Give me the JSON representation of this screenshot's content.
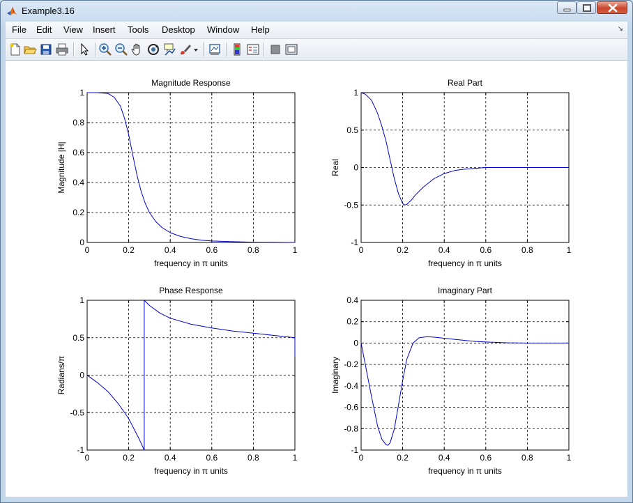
{
  "window": {
    "title": "Example3.16"
  },
  "menu": [
    "File",
    "Edit",
    "View",
    "Insert",
    "Tools",
    "Desktop",
    "Window",
    "Help"
  ],
  "toolbar_icons": [
    "new-figure-icon",
    "open-file-icon",
    "save-icon",
    "print-icon",
    "edit-plot-arrow-icon",
    "zoom-in-icon",
    "zoom-out-icon",
    "pan-hand-icon",
    "rotate-3d-icon",
    "data-cursor-icon",
    "brush-icon",
    "brush-dropdown-icon",
    "link-plot-icon",
    "insert-colorbar-icon",
    "insert-legend-icon",
    "hide-plot-tools-icon",
    "show-plot-tools-icon"
  ],
  "colors": {
    "line": "#0000cc",
    "grid": "#000000",
    "axes": "#000000"
  },
  "chart_data": [
    {
      "type": "line",
      "title": "Magnitude Response",
      "xlabel": "frequency in π units",
      "ylabel": "Magnitude  |H|",
      "xlim": [
        0,
        1
      ],
      "ylim": [
        0,
        1
      ],
      "xticks": [
        "0",
        "0.2",
        "0.4",
        "0.6",
        "0.8",
        "1"
      ],
      "yticks": [
        "0",
        "0.2",
        "0.4",
        "0.6",
        "0.8",
        "1"
      ],
      "grid": true,
      "series": [
        {
          "x": [
            0,
            0.05,
            0.1,
            0.13,
            0.16,
            0.18,
            0.2,
            0.22,
            0.24,
            0.26,
            0.28,
            0.3,
            0.33,
            0.36,
            0.4,
            0.45,
            0.5,
            0.55,
            0.6,
            0.7,
            0.8,
            0.9,
            1.0
          ],
          "y": [
            1,
            1,
            0.995,
            0.97,
            0.91,
            0.83,
            0.72,
            0.58,
            0.45,
            0.34,
            0.26,
            0.2,
            0.14,
            0.1,
            0.065,
            0.04,
            0.025,
            0.015,
            0.01,
            0.005,
            0.002,
            0.001,
            0
          ]
        }
      ]
    },
    {
      "type": "line",
      "title": "Real Part",
      "xlabel": "frequency in π units",
      "ylabel": "Real",
      "xlim": [
        0,
        1
      ],
      "ylim": [
        -1,
        1
      ],
      "xticks": [
        "0",
        "0.2",
        "0.4",
        "0.6",
        "0.8",
        "1"
      ],
      "yticks": [
        "-1",
        "-0.5",
        "0",
        "0.5",
        "1"
      ],
      "grid": true,
      "series": [
        {
          "x": [
            0,
            0.02,
            0.05,
            0.08,
            0.1,
            0.12,
            0.14,
            0.16,
            0.18,
            0.2,
            0.21,
            0.22,
            0.24,
            0.26,
            0.3,
            0.35,
            0.4,
            0.45,
            0.5,
            0.55,
            0.6,
            0.7,
            0.8,
            0.9,
            1.0
          ],
          "y": [
            1,
            0.98,
            0.9,
            0.72,
            0.55,
            0.35,
            0.1,
            -0.15,
            -0.35,
            -0.48,
            -0.5,
            -0.49,
            -0.44,
            -0.37,
            -0.26,
            -0.15,
            -0.08,
            -0.04,
            -0.02,
            -0.01,
            0,
            0,
            0,
            0,
            0
          ]
        }
      ]
    },
    {
      "type": "line",
      "title": "Phase Response",
      "xlabel": "frequency in π units",
      "ylabel": "Radians/π",
      "xlim": [
        0,
        1
      ],
      "ylim": [
        -1,
        1
      ],
      "xticks": [
        "0",
        "0.2",
        "0.4",
        "0.6",
        "0.8",
        "1"
      ],
      "yticks": [
        "-1",
        "-0.5",
        "0",
        "0.5",
        "1"
      ],
      "grid": true,
      "series": [
        {
          "x": [
            0,
            0.05,
            0.1,
            0.15,
            0.2,
            0.25,
            0.275,
            0.275,
            0.3,
            0.35,
            0.4,
            0.5,
            0.6,
            0.7,
            0.8,
            0.9,
            1.0,
            1.0
          ],
          "y": [
            0,
            -0.1,
            -0.22,
            -0.38,
            -0.58,
            -0.85,
            -1,
            1,
            0.93,
            0.83,
            0.76,
            0.68,
            0.63,
            0.59,
            0.56,
            0.53,
            0.5,
            0.25
          ]
        }
      ]
    },
    {
      "type": "line",
      "title": "Imaginary Part",
      "xlabel": "frequency in π units",
      "ylabel": "Imaginary",
      "xlim": [
        0,
        1
      ],
      "ylim": [
        -1,
        0.4
      ],
      "xticks": [
        "0",
        "0.2",
        "0.4",
        "0.6",
        "0.8",
        "1"
      ],
      "yticks": [
        "-1",
        "-0.8",
        "-0.6",
        "-0.4",
        "-0.2",
        "0",
        "0.2",
        "0.4"
      ],
      "grid": true,
      "series": [
        {
          "x": [
            0,
            0.02,
            0.05,
            0.08,
            0.1,
            0.12,
            0.13,
            0.14,
            0.16,
            0.18,
            0.2,
            0.22,
            0.25,
            0.28,
            0.32,
            0.35,
            0.4,
            0.45,
            0.5,
            0.55,
            0.6,
            0.7,
            0.8,
            0.9,
            1.0
          ],
          "y": [
            0,
            -0.2,
            -0.5,
            -0.78,
            -0.9,
            -0.95,
            -0.955,
            -0.93,
            -0.8,
            -0.58,
            -0.35,
            -0.15,
            0.0,
            0.05,
            0.06,
            0.055,
            0.045,
            0.035,
            0.025,
            0.015,
            0.01,
            0.003,
            0,
            0,
            0
          ]
        }
      ]
    }
  ]
}
